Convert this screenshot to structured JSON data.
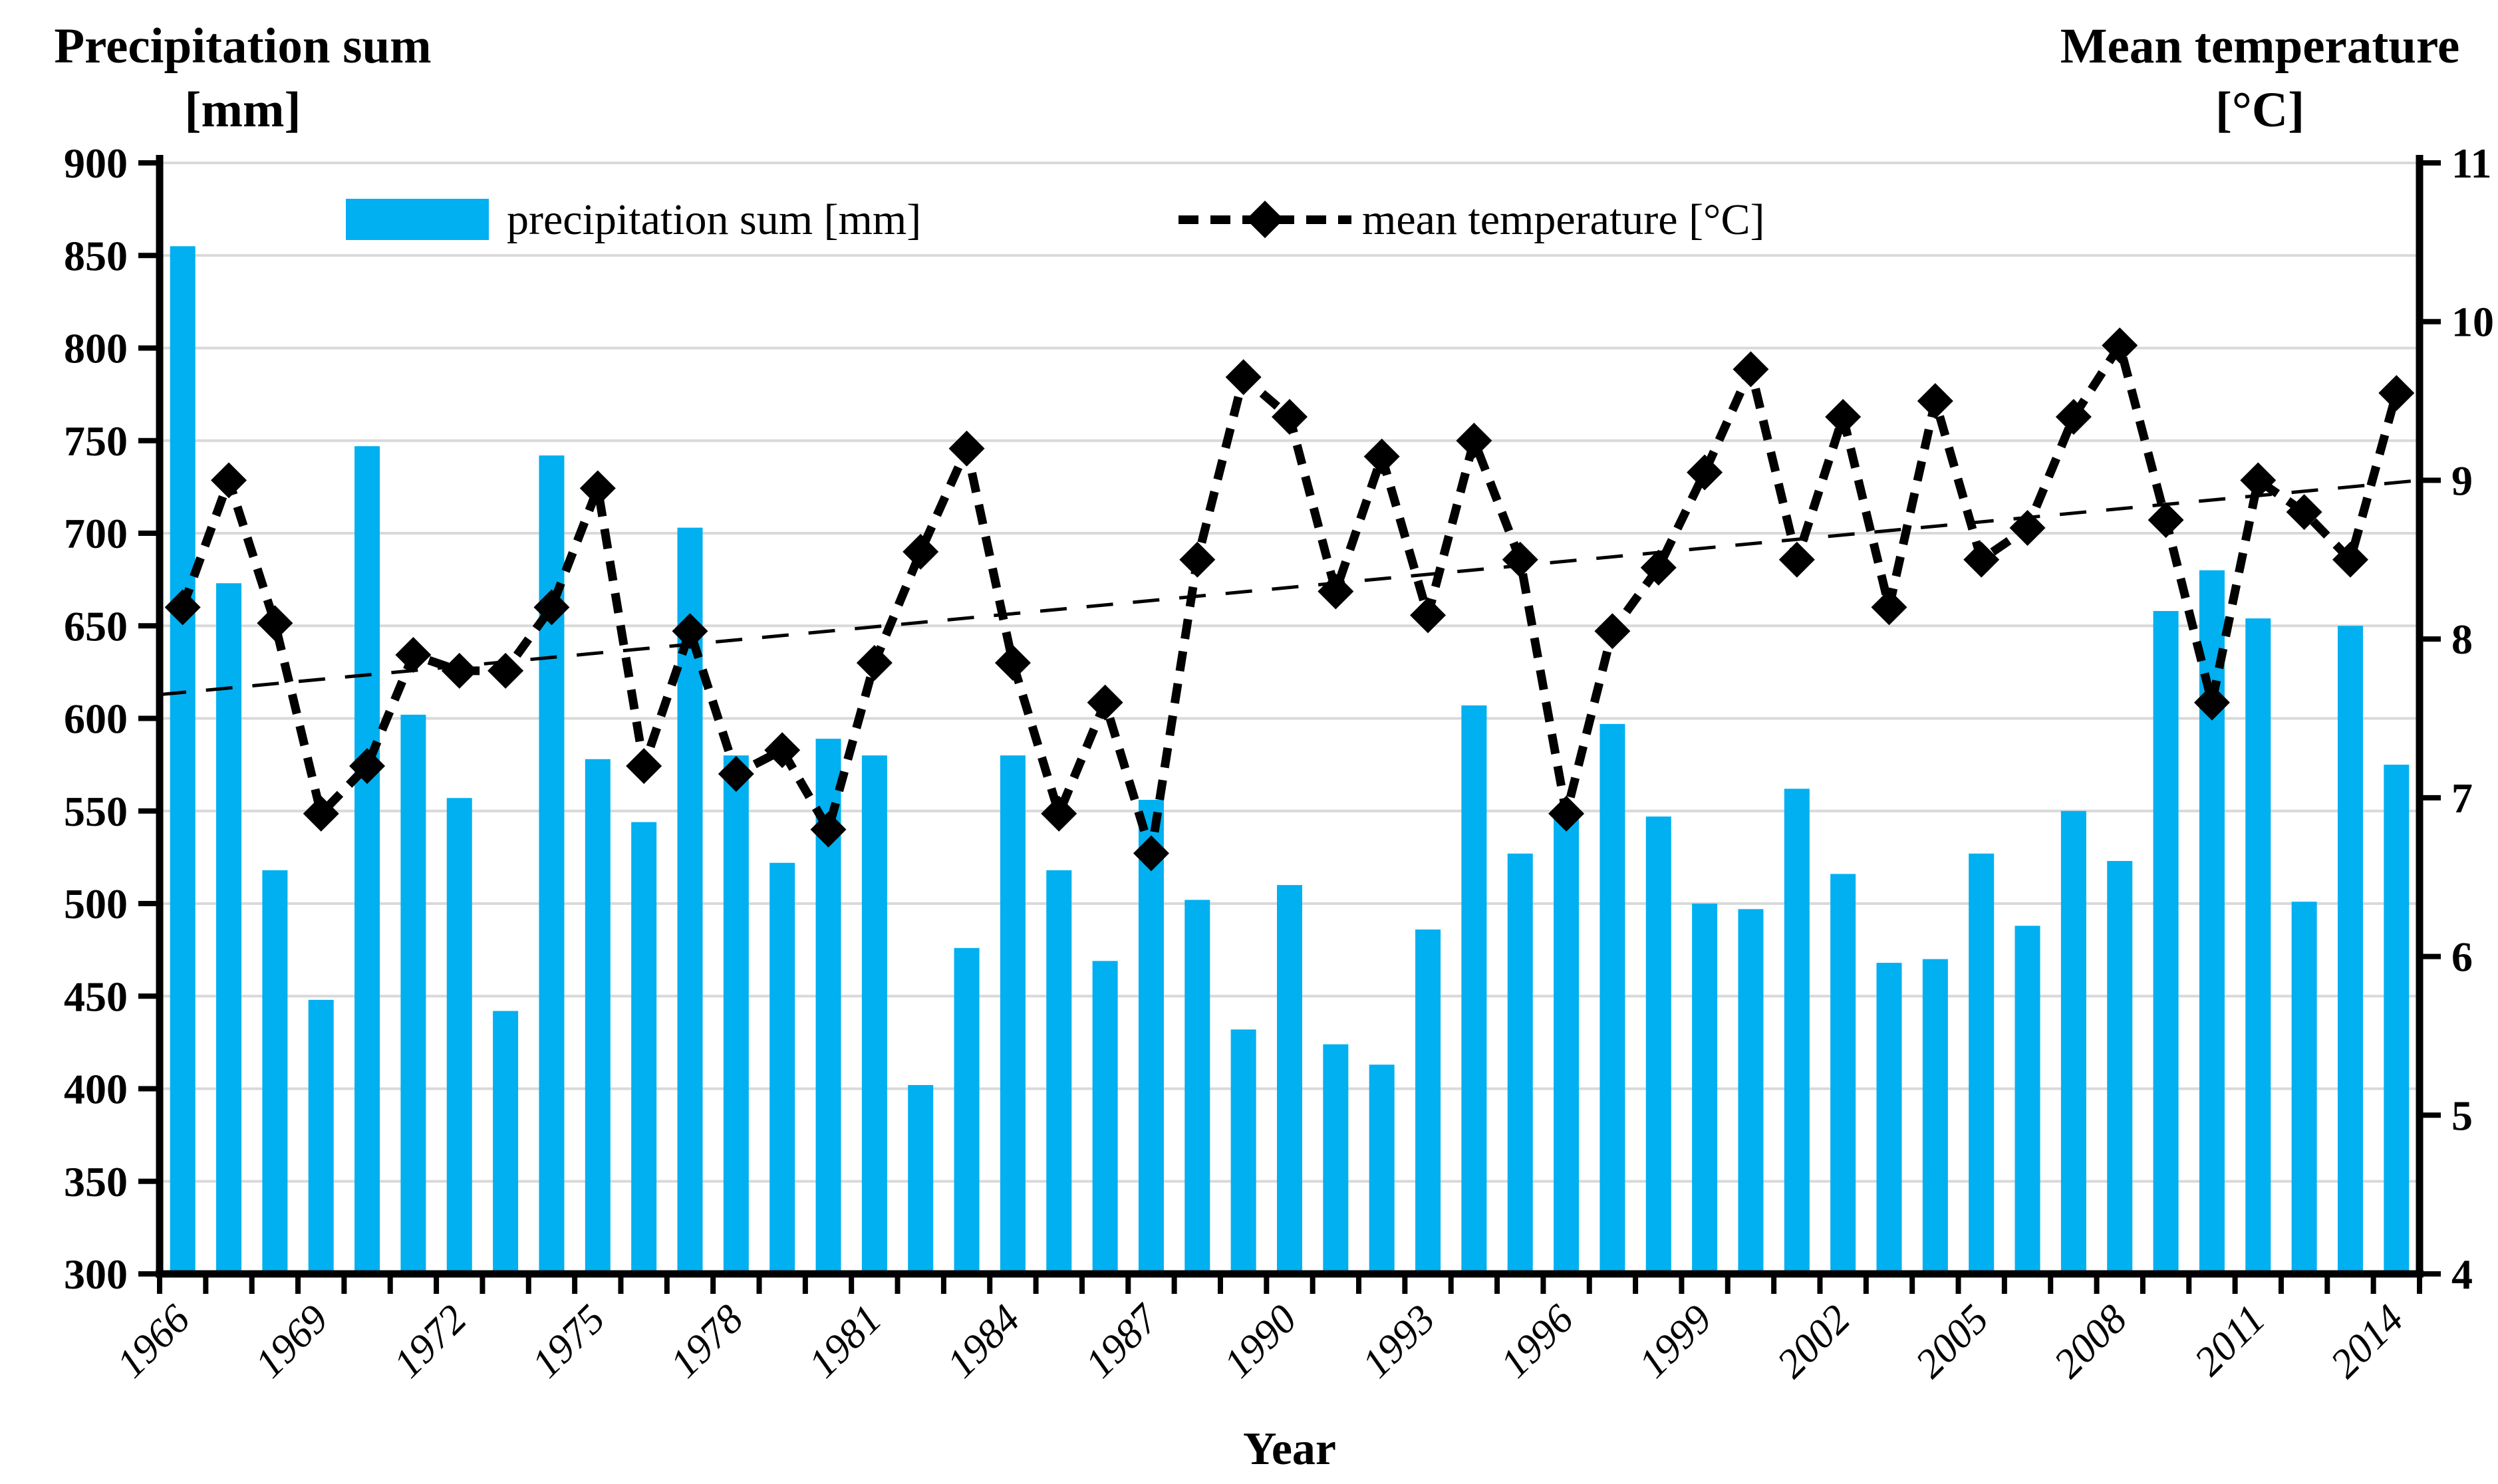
{
  "titles": {
    "left_line1": "Precipitation sum",
    "left_line2": "[mm]",
    "right_line1": "Mean temperature",
    "right_line2": "[°C]",
    "x_axis": "Year"
  },
  "legend": {
    "precipitation": "precipitation sum [mm]",
    "temperature": "mean temperature [°C]"
  },
  "colors": {
    "bar": "#00B0F0",
    "line": "#000000",
    "trend": "#000000",
    "grid": "#D9D9D9",
    "axis": "#000000",
    "background": "#FFFFFF"
  },
  "chart_data": {
    "type": "bar",
    "subtype": "bar-and-line-dual-axis",
    "x": [
      1966,
      1967,
      1968,
      1969,
      1970,
      1971,
      1972,
      1973,
      1974,
      1975,
      1976,
      1977,
      1978,
      1979,
      1980,
      1981,
      1982,
      1983,
      1984,
      1985,
      1986,
      1987,
      1988,
      1989,
      1990,
      1991,
      1992,
      1993,
      1994,
      1995,
      1996,
      1997,
      1998,
      1999,
      2000,
      2001,
      2002,
      2003,
      2004,
      2005,
      2006,
      2007,
      2008,
      2009,
      2010,
      2011,
      2012,
      2013,
      2014
    ],
    "series": [
      {
        "name": "precipitation sum [mm]",
        "type": "bar",
        "axis": "left",
        "values": [
          855,
          673,
          518,
          448,
          747,
          602,
          557,
          442,
          742,
          578,
          544,
          703,
          580,
          522,
          589,
          580,
          402,
          476,
          580,
          518,
          469,
          556,
          502,
          432,
          510,
          424,
          413,
          486,
          607,
          527,
          551,
          597,
          547,
          500,
          497,
          562,
          516,
          468,
          470,
          527,
          488,
          550,
          523,
          658,
          680,
          654,
          501,
          650,
          575
        ]
      },
      {
        "name": "mean temperature [°C]",
        "type": "line",
        "axis": "right",
        "values": [
          8.2,
          9.0,
          8.1,
          6.9,
          7.2,
          7.9,
          7.8,
          7.8,
          8.2,
          8.95,
          7.2,
          8.05,
          7.15,
          7.3,
          6.8,
          7.85,
          8.55,
          9.2,
          7.85,
          6.9,
          7.6,
          6.65,
          8.5,
          9.65,
          9.4,
          8.3,
          9.15,
          8.15,
          9.25,
          8.5,
          6.9,
          8.05,
          8.45,
          9.05,
          9.7,
          8.5,
          9.4,
          8.2,
          9.5,
          8.5,
          8.7,
          9.4,
          9.85,
          8.75,
          7.6,
          9.0,
          8.8,
          8.5,
          9.55
        ]
      },
      {
        "name": "temperature linear trend",
        "type": "trendline",
        "axis": "right",
        "start": 7.65,
        "end": 9.0
      }
    ],
    "left_axis": {
      "label": "Precipitation sum [mm]",
      "min": 300,
      "max": 900,
      "step": 50,
      "ticks": [
        300,
        350,
        400,
        450,
        500,
        550,
        600,
        650,
        700,
        750,
        800,
        850,
        900
      ]
    },
    "right_axis": {
      "label": "Mean temperature [°C]",
      "min": 4,
      "max": 11,
      "step": 1,
      "ticks": [
        4,
        5,
        6,
        7,
        8,
        9,
        10,
        11
      ]
    },
    "xlabel": "Year",
    "x_tick_labels": [
      1966,
      1969,
      1972,
      1975,
      1978,
      1981,
      1984,
      1987,
      1990,
      1993,
      1996,
      1999,
      2002,
      2005,
      2008,
      2011,
      2014
    ],
    "grid": true,
    "legend_position": "top"
  }
}
